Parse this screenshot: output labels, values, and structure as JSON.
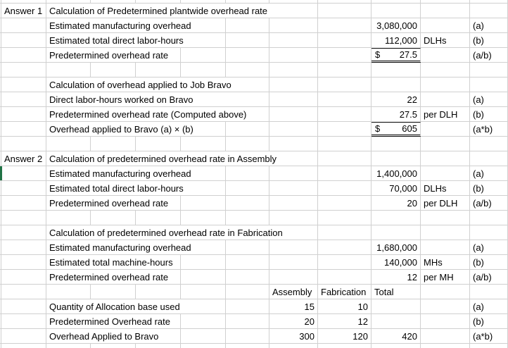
{
  "colors": {
    "grid": "#d0d0d0",
    "cell_border": "#000000",
    "selection_green": "#217346",
    "background": "#ffffff",
    "text": "#000000"
  },
  "sheet": {
    "rows": [
      {
        "cells": [
          {
            "col": "A",
            "span": 1,
            "text": "Answer 1",
            "align": "left",
            "kind": "label"
          },
          {
            "col": "B",
            "span": 6,
            "text": "Calculation of Predetermined plantwide overhead rate",
            "align": "left",
            "kind": "label"
          }
        ]
      },
      {
        "cells": [
          {
            "col": "B",
            "span": 4,
            "text": "Estimated manufacturing overhead",
            "align": "left",
            "kind": "label"
          },
          {
            "col": "I",
            "span": 1,
            "text": "3,080,000",
            "align": "right",
            "kind": "value"
          },
          {
            "col": "K",
            "span": 1,
            "text": "(a)",
            "align": "left",
            "kind": "ref"
          }
        ]
      },
      {
        "cells": [
          {
            "col": "B",
            "span": 4,
            "text": "Estimated total direct labor-hours",
            "align": "left",
            "kind": "label"
          },
          {
            "col": "I",
            "span": 1,
            "text": "112,000",
            "align": "right",
            "kind": "value",
            "no_bottom": true
          },
          {
            "col": "J",
            "span": 1,
            "text": "DLHs",
            "align": "left",
            "kind": "unit"
          },
          {
            "col": "K",
            "span": 1,
            "text": "(b)",
            "align": "left",
            "kind": "ref"
          }
        ]
      },
      {
        "cells": [
          {
            "col": "B",
            "span": 3,
            "text": "Predetermined overhead rate",
            "align": "left",
            "kind": "label"
          },
          {
            "col": "I",
            "span": 1,
            "currency": "$",
            "text": "27.5",
            "align": "right",
            "kind": "money"
          },
          {
            "col": "K",
            "span": 1,
            "text": "(a/b)",
            "align": "left",
            "kind": "ref"
          }
        ]
      },
      {
        "cells": []
      },
      {
        "cells": [
          {
            "col": "B",
            "span": 5,
            "text": "Calculation of overhead applied to Job Bravo",
            "align": "left",
            "kind": "label"
          }
        ]
      },
      {
        "cells": [
          {
            "col": "B",
            "span": 5,
            "text": "Direct labor-hours worked on Bravo",
            "align": "left",
            "kind": "label"
          },
          {
            "col": "I",
            "span": 1,
            "text": "22",
            "align": "right",
            "kind": "value"
          },
          {
            "col": "K",
            "span": 1,
            "text": "(a)",
            "align": "left",
            "kind": "ref"
          }
        ]
      },
      {
        "cells": [
          {
            "col": "B",
            "span": 5,
            "text": "Predetermined overhead rate (Computed above)",
            "align": "left",
            "kind": "label"
          },
          {
            "col": "I",
            "span": 1,
            "text": "27.5",
            "align": "right",
            "kind": "value",
            "no_bottom": true
          },
          {
            "col": "J",
            "span": 1,
            "text": "per DLH",
            "align": "left",
            "kind": "unit"
          },
          {
            "col": "K",
            "span": 1,
            "text": "(b)",
            "align": "left",
            "kind": "ref"
          }
        ]
      },
      {
        "cells": [
          {
            "col": "B",
            "span": 4,
            "text": "Overhead applied to Bravo (a) × (b)",
            "align": "left",
            "kind": "label"
          },
          {
            "col": "I",
            "span": 1,
            "currency": "$",
            "text": "605",
            "align": "right",
            "kind": "money"
          },
          {
            "col": "K",
            "span": 1,
            "text": "(a*b)",
            "align": "left",
            "kind": "ref"
          }
        ]
      },
      {
        "cells": []
      },
      {
        "cells": [
          {
            "col": "A",
            "span": 1,
            "text": "Answer 2",
            "align": "left",
            "kind": "label"
          },
          {
            "col": "B",
            "span": 6,
            "text": "Calculation of predetermined overhead rate in Assembly",
            "align": "left",
            "kind": "label"
          }
        ]
      },
      {
        "cells": [
          {
            "col": "B",
            "span": 4,
            "text": "Estimated manufacturing overhead",
            "align": "left",
            "kind": "label"
          },
          {
            "col": "I",
            "span": 1,
            "text": "1,400,000",
            "align": "right",
            "kind": "value"
          },
          {
            "col": "K",
            "span": 1,
            "text": "(a)",
            "align": "left",
            "kind": "ref"
          }
        ]
      },
      {
        "cells": [
          {
            "col": "B",
            "span": 4,
            "text": "Estimated total direct labor-hours",
            "align": "left",
            "kind": "label"
          },
          {
            "col": "I",
            "span": 1,
            "text": "70,000",
            "align": "right",
            "kind": "value"
          },
          {
            "col": "J",
            "span": 1,
            "text": "DLHs",
            "align": "left",
            "kind": "unit"
          },
          {
            "col": "K",
            "span": 1,
            "text": "(b)",
            "align": "left",
            "kind": "ref"
          }
        ]
      },
      {
        "cells": [
          {
            "col": "B",
            "span": 3,
            "text": "Predetermined overhead rate",
            "align": "left",
            "kind": "label"
          },
          {
            "col": "I",
            "span": 1,
            "text": "20",
            "align": "right",
            "kind": "value"
          },
          {
            "col": "J",
            "span": 1,
            "text": "per DLH",
            "align": "left",
            "kind": "unit"
          },
          {
            "col": "K",
            "span": 1,
            "text": "(a/b)",
            "align": "left",
            "kind": "ref"
          }
        ]
      },
      {
        "cells": []
      },
      {
        "cells": [
          {
            "col": "B",
            "span": 6,
            "text": "Calculation of predetermined overhead rate in Fabrication",
            "align": "left",
            "kind": "label"
          }
        ]
      },
      {
        "cells": [
          {
            "col": "B",
            "span": 4,
            "text": "Estimated manufacturing overhead",
            "align": "left",
            "kind": "label"
          },
          {
            "col": "I",
            "span": 1,
            "text": "1,680,000",
            "align": "right",
            "kind": "value"
          },
          {
            "col": "K",
            "span": 1,
            "text": "(a)",
            "align": "left",
            "kind": "ref"
          }
        ]
      },
      {
        "cells": [
          {
            "col": "B",
            "span": 3,
            "text": "Estimated total machine-hours",
            "align": "left",
            "kind": "label"
          },
          {
            "col": "I",
            "span": 1,
            "text": "140,000",
            "align": "right",
            "kind": "value"
          },
          {
            "col": "J",
            "span": 1,
            "text": "MHs",
            "align": "left",
            "kind": "unit"
          },
          {
            "col": "K",
            "span": 1,
            "text": "(b)",
            "align": "left",
            "kind": "ref"
          }
        ]
      },
      {
        "cells": [
          {
            "col": "B",
            "span": 3,
            "text": "Predetermined overhead rate",
            "align": "left",
            "kind": "label"
          },
          {
            "col": "I",
            "span": 1,
            "text": "12",
            "align": "right",
            "kind": "value"
          },
          {
            "col": "J",
            "span": 1,
            "text": "per MH",
            "align": "left",
            "kind": "unit"
          },
          {
            "col": "K",
            "span": 1,
            "text": "(a/b)",
            "align": "left",
            "kind": "ref"
          }
        ]
      },
      {
        "cells": [
          {
            "col": "G",
            "span": 1,
            "text": "Assembly",
            "align": "left",
            "kind": "header"
          },
          {
            "col": "H",
            "span": 1,
            "text": "Fabrication",
            "align": "left",
            "kind": "header"
          },
          {
            "col": "I",
            "span": 1,
            "text": "Total",
            "align": "left",
            "kind": "header"
          }
        ]
      },
      {
        "cells": [
          {
            "col": "B",
            "span": 4,
            "text": "Quantity of Allocation base used",
            "align": "left",
            "kind": "label"
          },
          {
            "col": "G",
            "span": 1,
            "text": "15",
            "align": "right",
            "kind": "value"
          },
          {
            "col": "H",
            "span": 1,
            "text": "10",
            "align": "right",
            "kind": "value"
          },
          {
            "col": "K",
            "span": 1,
            "text": "(a)",
            "align": "left",
            "kind": "ref"
          }
        ]
      },
      {
        "cells": [
          {
            "col": "B",
            "span": 3,
            "text": "Predetermined Overhead rate",
            "align": "left",
            "kind": "label"
          },
          {
            "col": "G",
            "span": 1,
            "text": "20",
            "align": "right",
            "kind": "value"
          },
          {
            "col": "H",
            "span": 1,
            "text": "12",
            "align": "right",
            "kind": "value"
          },
          {
            "col": "K",
            "span": 1,
            "text": "(b)",
            "align": "left",
            "kind": "ref"
          }
        ]
      },
      {
        "cells": [
          {
            "col": "B",
            "span": 3,
            "text": "Overhead Applied to Bravo",
            "align": "left",
            "kind": "label"
          },
          {
            "col": "G",
            "span": 1,
            "text": "300",
            "align": "right",
            "kind": "value"
          },
          {
            "col": "H",
            "span": 1,
            "text": "120",
            "align": "right",
            "kind": "value"
          },
          {
            "col": "I",
            "span": 1,
            "text": "420",
            "align": "right",
            "kind": "value"
          },
          {
            "col": "K",
            "span": 1,
            "text": "(a*b)",
            "align": "left",
            "kind": "ref"
          }
        ]
      }
    ]
  }
}
